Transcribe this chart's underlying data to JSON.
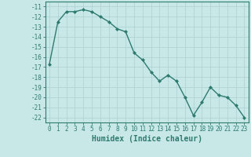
{
  "x": [
    0,
    1,
    2,
    3,
    4,
    5,
    6,
    7,
    8,
    9,
    10,
    11,
    12,
    13,
    14,
    15,
    16,
    17,
    18,
    19,
    20,
    21,
    22,
    23
  ],
  "y": [
    -16.7,
    -12.5,
    -11.5,
    -11.5,
    -11.3,
    -11.5,
    -12.0,
    -12.5,
    -13.2,
    -13.5,
    -15.6,
    -16.3,
    -17.5,
    -18.4,
    -17.8,
    -18.4,
    -20.0,
    -21.8,
    -20.5,
    -19.0,
    -19.8,
    -20.0,
    -20.8,
    -22.0
  ],
  "line_color": "#2e7b6e",
  "marker": "D",
  "markersize": 2.0,
  "bg_color": "#c8e8e8",
  "grid_color": "#b0d4d4",
  "xlabel": "Humidex (Indice chaleur)",
  "ylim": [
    -22.5,
    -10.5
  ],
  "xlim": [
    -0.5,
    23.5
  ],
  "yticks": [
    -11,
    -12,
    -13,
    -14,
    -15,
    -16,
    -17,
    -18,
    -19,
    -20,
    -21,
    -22
  ],
  "xticks": [
    0,
    1,
    2,
    3,
    4,
    5,
    6,
    7,
    8,
    9,
    10,
    11,
    12,
    13,
    14,
    15,
    16,
    17,
    18,
    19,
    20,
    21,
    22,
    23
  ],
  "tick_fontsize": 5.5,
  "xlabel_fontsize": 7.0,
  "linewidth": 1.0
}
